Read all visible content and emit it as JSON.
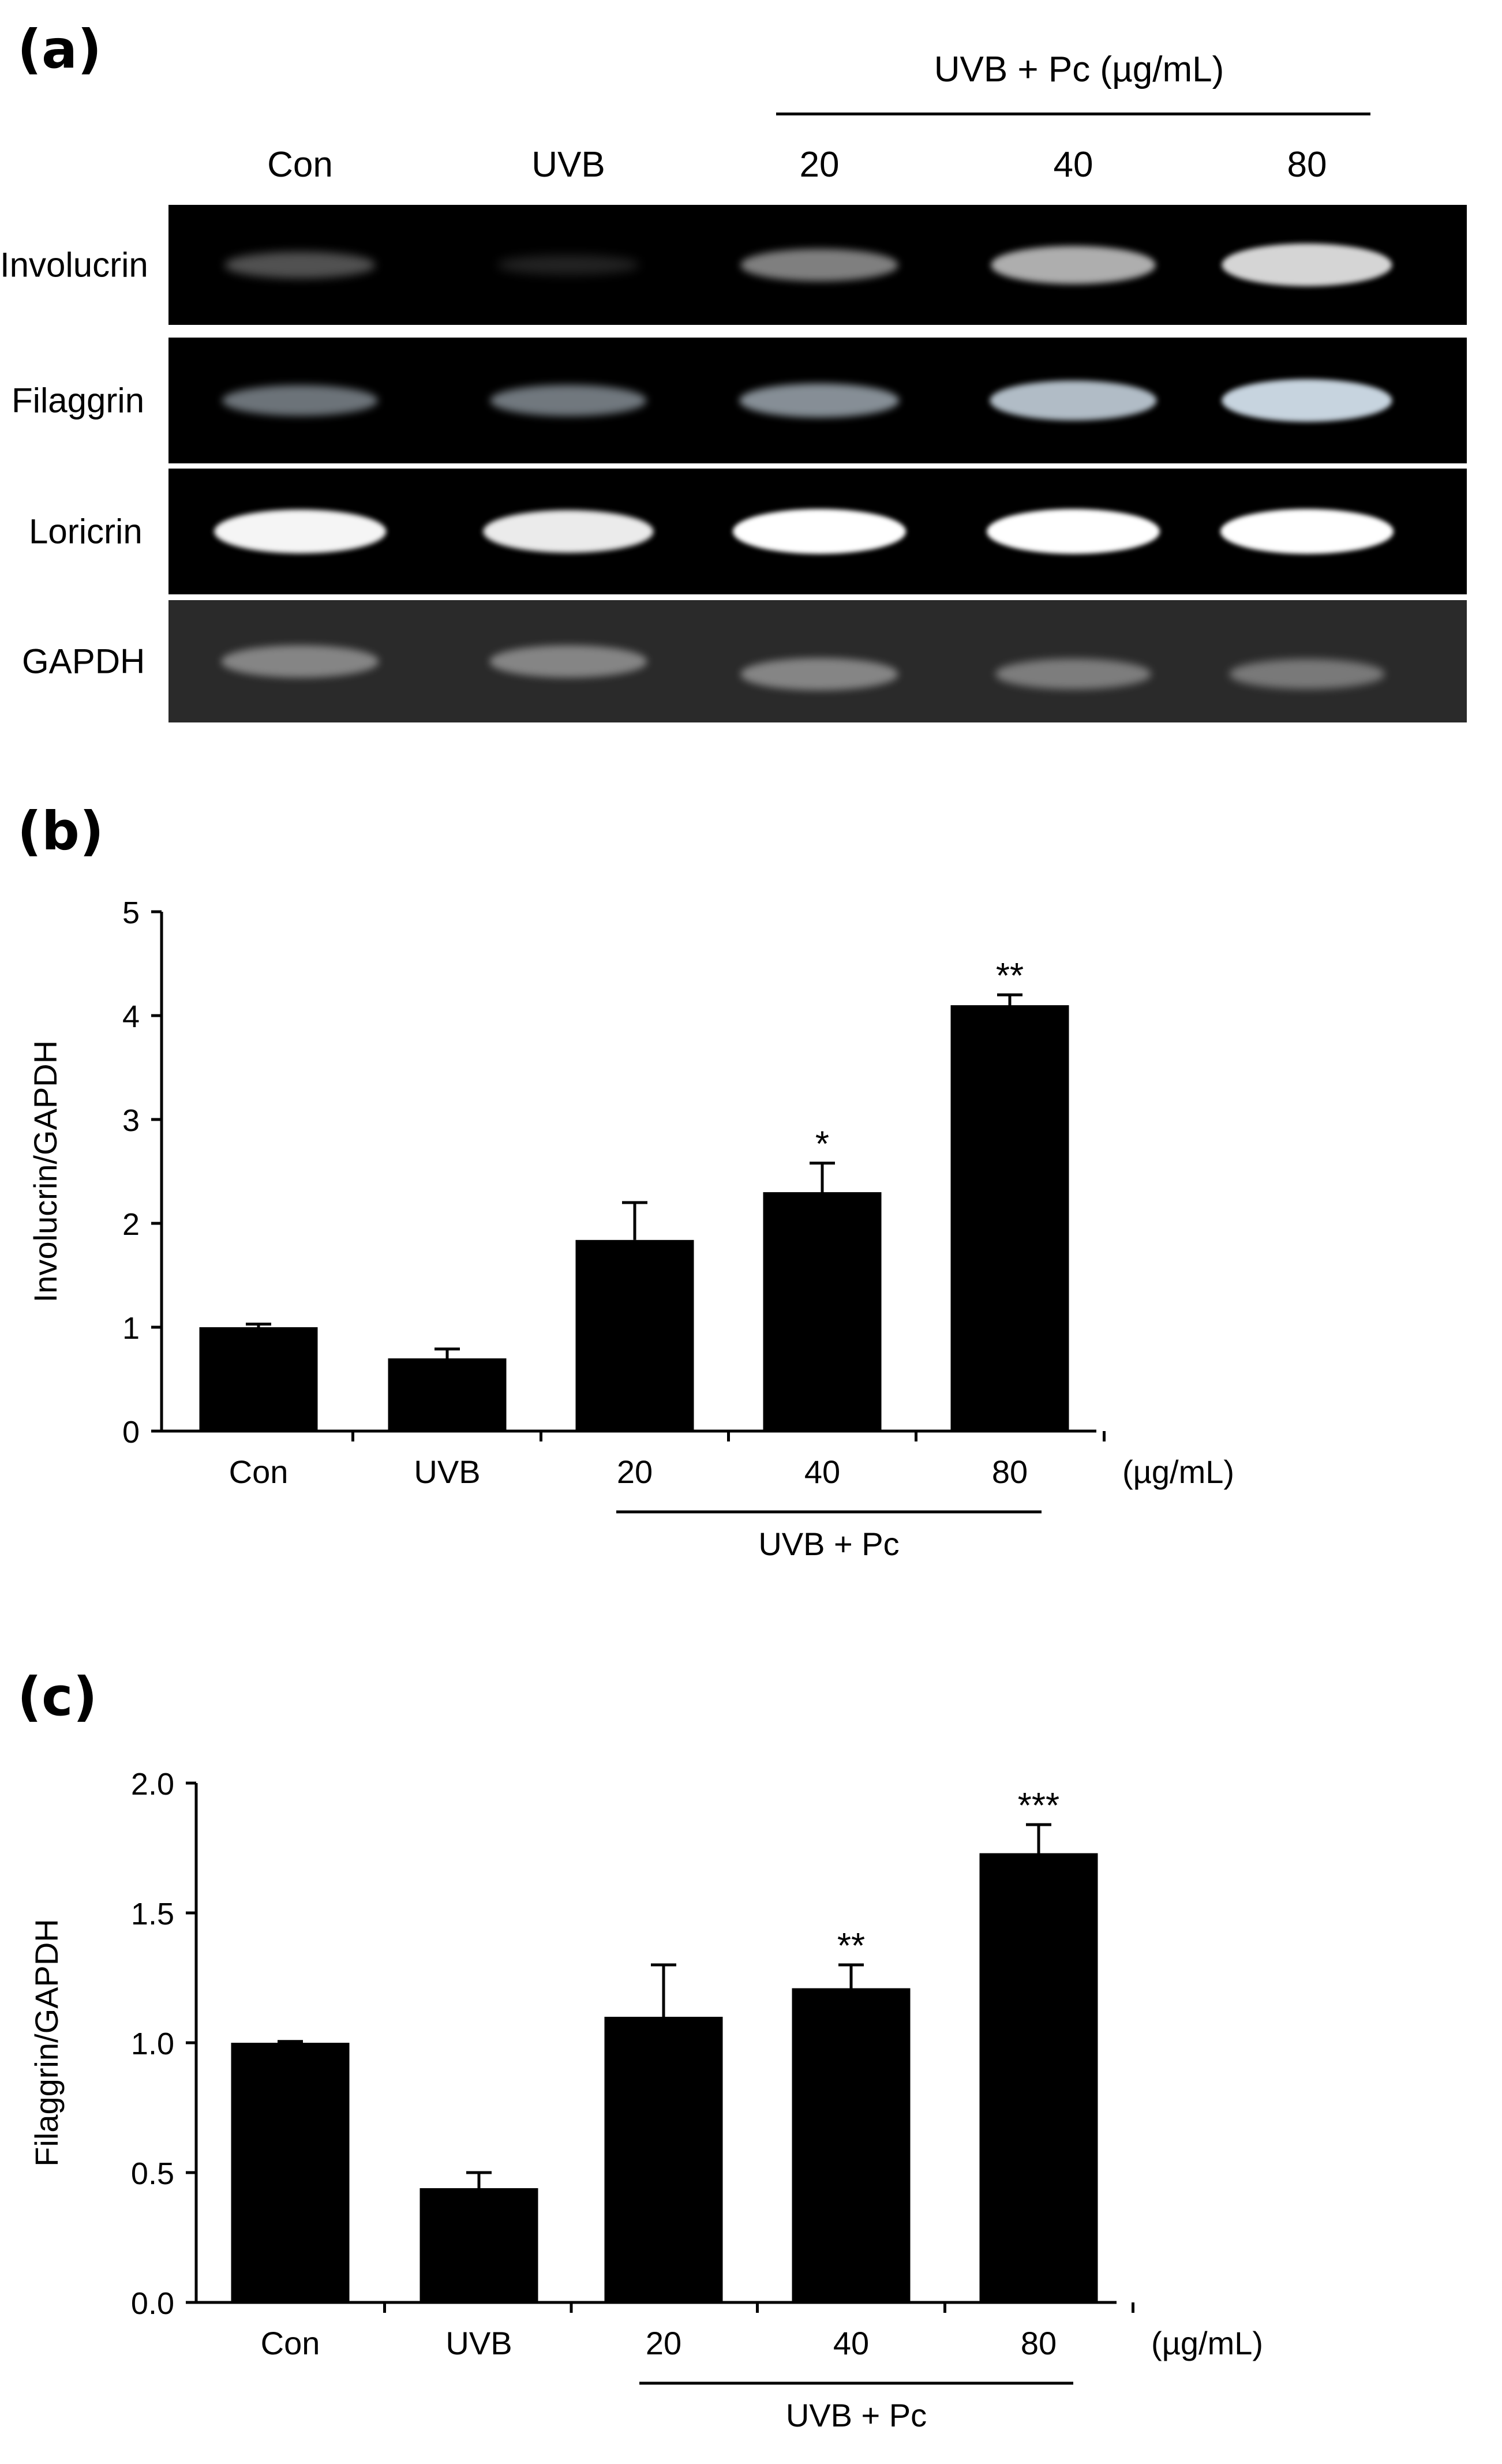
{
  "panel_a": {
    "letter": "(a)",
    "group_label": "UVB + Pc (µg/mL)",
    "lanes": [
      "Con",
      "UVB",
      "20",
      "40",
      "80"
    ],
    "rows": [
      {
        "label": "Involucrin",
        "band_color": "#e8e8e8",
        "bands": [
          0.35,
          0.12,
          0.55,
          0.75,
          0.92
        ]
      },
      {
        "label": "Filaggrin",
        "band_color": "#d8e6f2",
        "bands": [
          0.5,
          0.52,
          0.62,
          0.82,
          0.92
        ]
      },
      {
        "label": "Loricrin",
        "band_color": "#ffffff",
        "bands": [
          0.96,
          0.92,
          1.0,
          1.0,
          1.0
        ]
      },
      {
        "label": "GAPDH",
        "band_color": "#d0d0d0",
        "bands": [
          0.55,
          0.55,
          0.55,
          0.5,
          0.48
        ]
      }
    ]
  },
  "chart_data": [
    {
      "panel": "(b)",
      "type": "bar",
      "categories": [
        "Con",
        "UVB",
        "20",
        "40",
        "80"
      ],
      "values": [
        1.0,
        0.7,
        1.84,
        2.3,
        4.1
      ],
      "errors": [
        0.03,
        0.09,
        0.36,
        0.28,
        0.1
      ],
      "significance": [
        "",
        "",
        "",
        "*",
        "**"
      ],
      "ylabel": "Involucrin/GAPDH",
      "ylim": [
        0,
        5
      ],
      "yticks": [
        "0",
        "1",
        "2",
        "3",
        "4",
        "5"
      ],
      "unit_label": "(µg/mL)",
      "group_label": "UVB + Pc",
      "bar_color": "#000000"
    },
    {
      "panel": "(c)",
      "type": "bar",
      "categories": [
        "Con",
        "UVB",
        "20",
        "40",
        "80"
      ],
      "values": [
        1.0,
        0.44,
        1.1,
        1.21,
        1.73
      ],
      "errors": [
        0.005,
        0.06,
        0.2,
        0.09,
        0.11
      ],
      "significance": [
        "",
        "",
        "",
        "**",
        "***"
      ],
      "ylabel": "Filaggrin/GAPDH",
      "ylim": [
        0,
        2.0
      ],
      "yticks": [
        "0.0",
        "0.5",
        "1.0",
        "1.5",
        "2.0"
      ],
      "unit_label": "(µg/mL)",
      "group_label": "UVB + Pc",
      "bar_color": "#000000"
    }
  ]
}
